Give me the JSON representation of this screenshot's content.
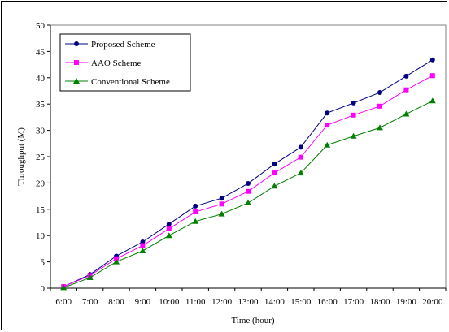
{
  "chart_data": {
    "type": "line",
    "title": "",
    "xlabel": "Time (hour)",
    "ylabel": "Throughput (M)",
    "ylim": [
      0,
      50
    ],
    "yticks": [
      0,
      5,
      10,
      15,
      20,
      25,
      30,
      35,
      40,
      45,
      50
    ],
    "categories": [
      "6:00",
      "7:00",
      "8:00",
      "9:00",
      "10:00",
      "11:00",
      "12:00",
      "13:00",
      "14:00",
      "15:00",
      "16:00",
      "17:00",
      "18:00",
      "19:00",
      "20:00"
    ],
    "legend_position": "top-left",
    "grid": false,
    "series": [
      {
        "name": "Proposed Scheme",
        "color": "#000080",
        "marker": "circle",
        "values": [
          0.3,
          2.6,
          6.1,
          8.8,
          12.2,
          15.6,
          17.1,
          19.9,
          23.6,
          26.8,
          33.3,
          35.2,
          37.2,
          40.3,
          43.4
        ]
      },
      {
        "name": "AAO Scheme",
        "color": "#ff00ff",
        "marker": "square",
        "values": [
          0.3,
          2.4,
          5.6,
          8.1,
          11.3,
          14.5,
          16.0,
          18.4,
          21.9,
          24.9,
          31.0,
          32.9,
          34.6,
          37.7,
          40.4
        ]
      },
      {
        "name": "Conventional Scheme",
        "color": "#008000",
        "marker": "triangle",
        "values": [
          0.1,
          2.0,
          5.0,
          7.1,
          10.0,
          12.7,
          14.1,
          16.2,
          19.4,
          21.9,
          27.2,
          28.9,
          30.5,
          33.1,
          35.6
        ]
      }
    ]
  }
}
